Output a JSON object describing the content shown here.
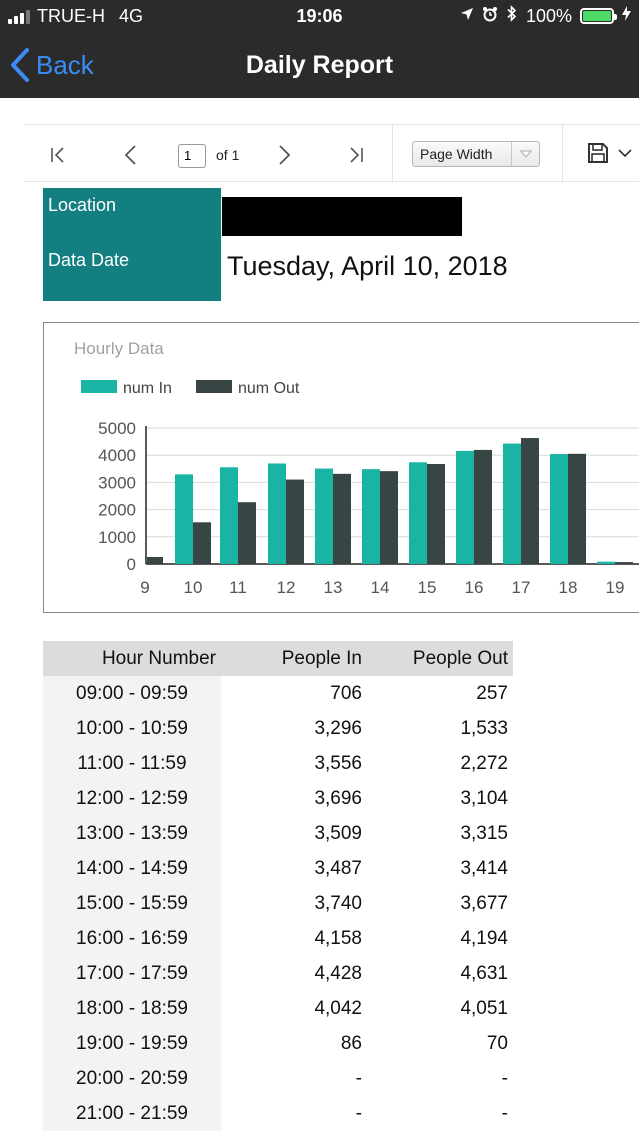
{
  "status_bar": {
    "carrier": "TRUE-H",
    "network": "4G",
    "time": "19:06",
    "battery": "100%"
  },
  "nav": {
    "back_label": "Back",
    "title": "Daily Report"
  },
  "toolbar": {
    "page_value": "1",
    "page_of": "of 1",
    "zoom_value": "Page Width"
  },
  "report": {
    "location_label": "Location",
    "data_date_label": "Data Date",
    "data_date_value": "Tuesday, April 10, 2018"
  },
  "chart_data": {
    "type": "bar",
    "title": "Hourly Data",
    "categories": [
      "9",
      "10",
      "11",
      "12",
      "13",
      "14",
      "15",
      "16",
      "17",
      "18",
      "19"
    ],
    "series": [
      {
        "name": "num In",
        "color": "#1ab4a4",
        "values": [
          706,
          3296,
          3556,
          3696,
          3509,
          3487,
          3740,
          4158,
          4428,
          4042,
          86
        ]
      },
      {
        "name": "num Out",
        "color": "#374545",
        "values": [
          257,
          1533,
          2272,
          3104,
          3315,
          3414,
          3677,
          4194,
          4631,
          4051,
          70
        ]
      }
    ],
    "y_ticks": [
      "5000",
      "4000",
      "3000",
      "2000",
      "1000",
      "0"
    ],
    "ylim": [
      0,
      5000
    ],
    "grid": true,
    "legend": "top-left"
  },
  "table": {
    "headers": [
      "Hour Number",
      "People In",
      "People Out"
    ],
    "rows": [
      [
        "09:00 - 09:59",
        "706",
        "257"
      ],
      [
        "10:00 - 10:59",
        "3,296",
        "1,533"
      ],
      [
        "11:00 - 11:59",
        "3,556",
        "2,272"
      ],
      [
        "12:00 - 12:59",
        "3,696",
        "3,104"
      ],
      [
        "13:00 - 13:59",
        "3,509",
        "3,315"
      ],
      [
        "14:00 - 14:59",
        "3,487",
        "3,414"
      ],
      [
        "15:00 - 15:59",
        "3,740",
        "3,677"
      ],
      [
        "16:00 - 16:59",
        "4,158",
        "4,194"
      ],
      [
        "17:00 - 17:59",
        "4,428",
        "4,631"
      ],
      [
        "18:00 - 18:59",
        "4,042",
        "4,051"
      ],
      [
        "19:00 - 19:59",
        "86",
        "70"
      ],
      [
        "20:00 - 20:59",
        "-",
        "-"
      ],
      [
        "21:00 - 21:59",
        "-",
        "-"
      ]
    ]
  }
}
